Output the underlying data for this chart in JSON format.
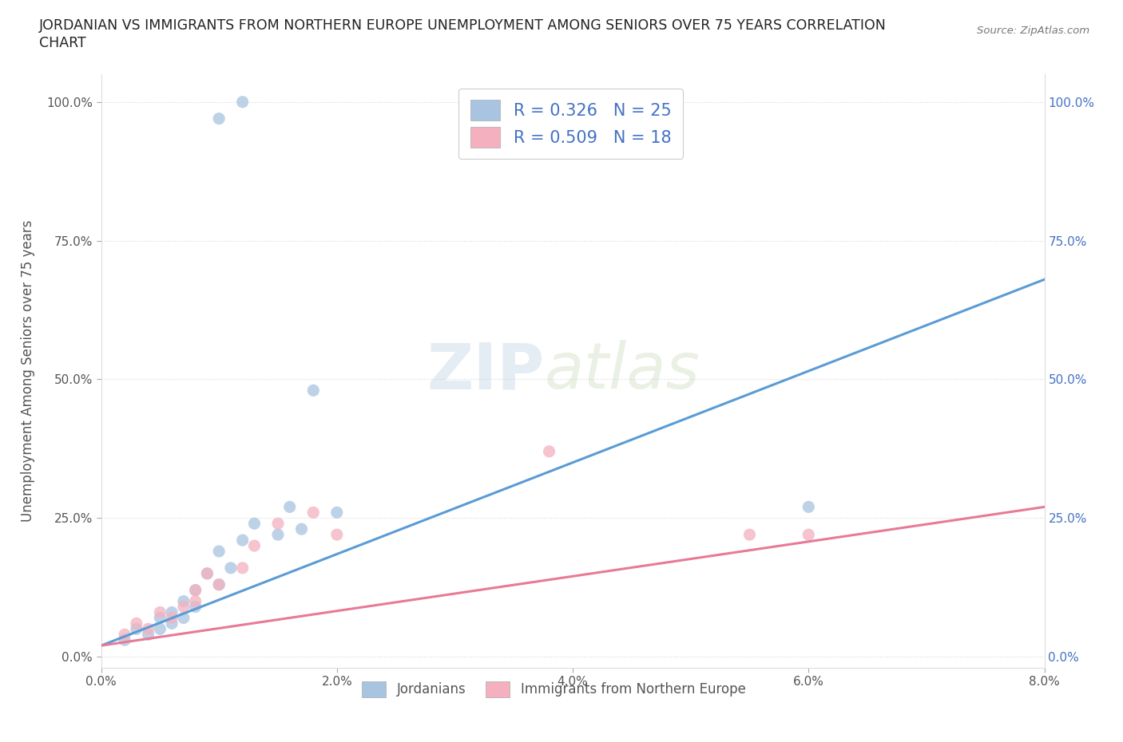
{
  "title_line1": "JORDANIAN VS IMMIGRANTS FROM NORTHERN EUROPE UNEMPLOYMENT AMONG SENIORS OVER 75 YEARS CORRELATION",
  "title_line2": "CHART",
  "source": "Source: ZipAtlas.com",
  "ylabel": "Unemployment Among Seniors over 75 years",
  "xlim": [
    0.0,
    0.08
  ],
  "ylim": [
    -0.02,
    1.05
  ],
  "yticks": [
    0.0,
    0.25,
    0.5,
    0.75,
    1.0
  ],
  "ytick_labels": [
    "0.0%",
    "25.0%",
    "50.0%",
    "75.0%",
    "100.0%"
  ],
  "xticks": [
    0.0,
    0.02,
    0.04,
    0.06,
    0.08
  ],
  "xtick_labels": [
    "0.0%",
    "2.0%",
    "4.0%",
    "6.0%",
    "8.0%"
  ],
  "blue_R": 0.326,
  "blue_N": 25,
  "pink_R": 0.509,
  "pink_N": 18,
  "blue_color": "#a8c4e0",
  "pink_color": "#f4b0be",
  "blue_line_color": "#5b9bd5",
  "pink_line_color": "#e87a96",
  "legend_text_color": "#4472c4",
  "watermark_zip": "ZIP",
  "watermark_atlas": "atlas",
  "blue_scatter_x": [
    0.002,
    0.003,
    0.004,
    0.005,
    0.005,
    0.006,
    0.006,
    0.007,
    0.007,
    0.008,
    0.008,
    0.009,
    0.01,
    0.01,
    0.011,
    0.012,
    0.013,
    0.015,
    0.016,
    0.017,
    0.018,
    0.02,
    0.01,
    0.012,
    0.06
  ],
  "blue_scatter_y": [
    0.03,
    0.05,
    0.04,
    0.07,
    0.05,
    0.08,
    0.06,
    0.1,
    0.07,
    0.12,
    0.09,
    0.15,
    0.19,
    0.13,
    0.16,
    0.21,
    0.24,
    0.22,
    0.27,
    0.23,
    0.48,
    0.26,
    0.97,
    1.0,
    0.27
  ],
  "pink_scatter_x": [
    0.002,
    0.003,
    0.004,
    0.005,
    0.006,
    0.007,
    0.008,
    0.008,
    0.009,
    0.01,
    0.012,
    0.013,
    0.015,
    0.018,
    0.02,
    0.038,
    0.055,
    0.06
  ],
  "pink_scatter_y": [
    0.04,
    0.06,
    0.05,
    0.08,
    0.07,
    0.09,
    0.1,
    0.12,
    0.15,
    0.13,
    0.16,
    0.2,
    0.24,
    0.26,
    0.22,
    0.37,
    0.22,
    0.22
  ],
  "blue_line_x": [
    0.0,
    0.08
  ],
  "blue_line_y": [
    0.02,
    0.68
  ],
  "pink_line_x": [
    0.0,
    0.08
  ],
  "pink_line_y": [
    0.02,
    0.27
  ],
  "grid_color": "#cccccc",
  "background_color": "#ffffff"
}
